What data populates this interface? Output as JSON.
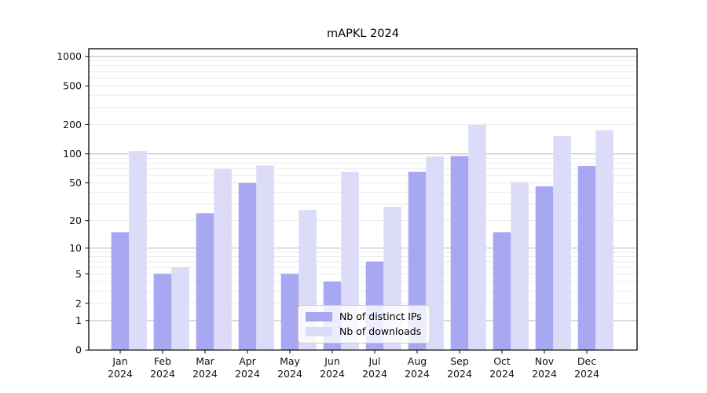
{
  "chart_data": {
    "type": "bar",
    "title": "mAPKL 2024",
    "categories": [
      "Jan",
      "Feb",
      "Mar",
      "Apr",
      "May",
      "Jun",
      "Jul",
      "Aug",
      "Sep",
      "Oct",
      "Nov",
      "Dec"
    ],
    "x_tick_year": "2024",
    "series": [
      {
        "name": "Nb of distinct IPs",
        "color": "#a7a7f2",
        "values": [
          15,
          5,
          24,
          50,
          5,
          4,
          7,
          65,
          95,
          15,
          46,
          75
        ]
      },
      {
        "name": "Nb of downloads",
        "color": "#dcdcf8",
        "values": [
          107,
          6,
          70,
          76,
          26,
          65,
          28,
          94,
          199,
          51,
          153,
          175
        ]
      }
    ],
    "yscale": "log1p",
    "yticks": [
      0,
      1,
      2,
      5,
      10,
      20,
      50,
      100,
      200,
      500,
      1000
    ],
    "minor_gridlines": [
      2,
      3,
      4,
      5,
      6,
      7,
      8,
      9,
      20,
      30,
      40,
      50,
      60,
      70,
      80,
      90,
      200,
      300,
      400,
      500,
      600,
      700,
      800,
      900
    ],
    "major_gridlines": [
      1,
      10,
      100,
      1000
    ],
    "ylim": [
      0,
      1230
    ],
    "grid": true,
    "legend_position": "lower center",
    "colors": {
      "major_grid": "#bcbcbc",
      "minor_grid": "#eaeaea",
      "axis": "#000000",
      "tick_label": "#111111",
      "background": "#ffffff"
    }
  }
}
